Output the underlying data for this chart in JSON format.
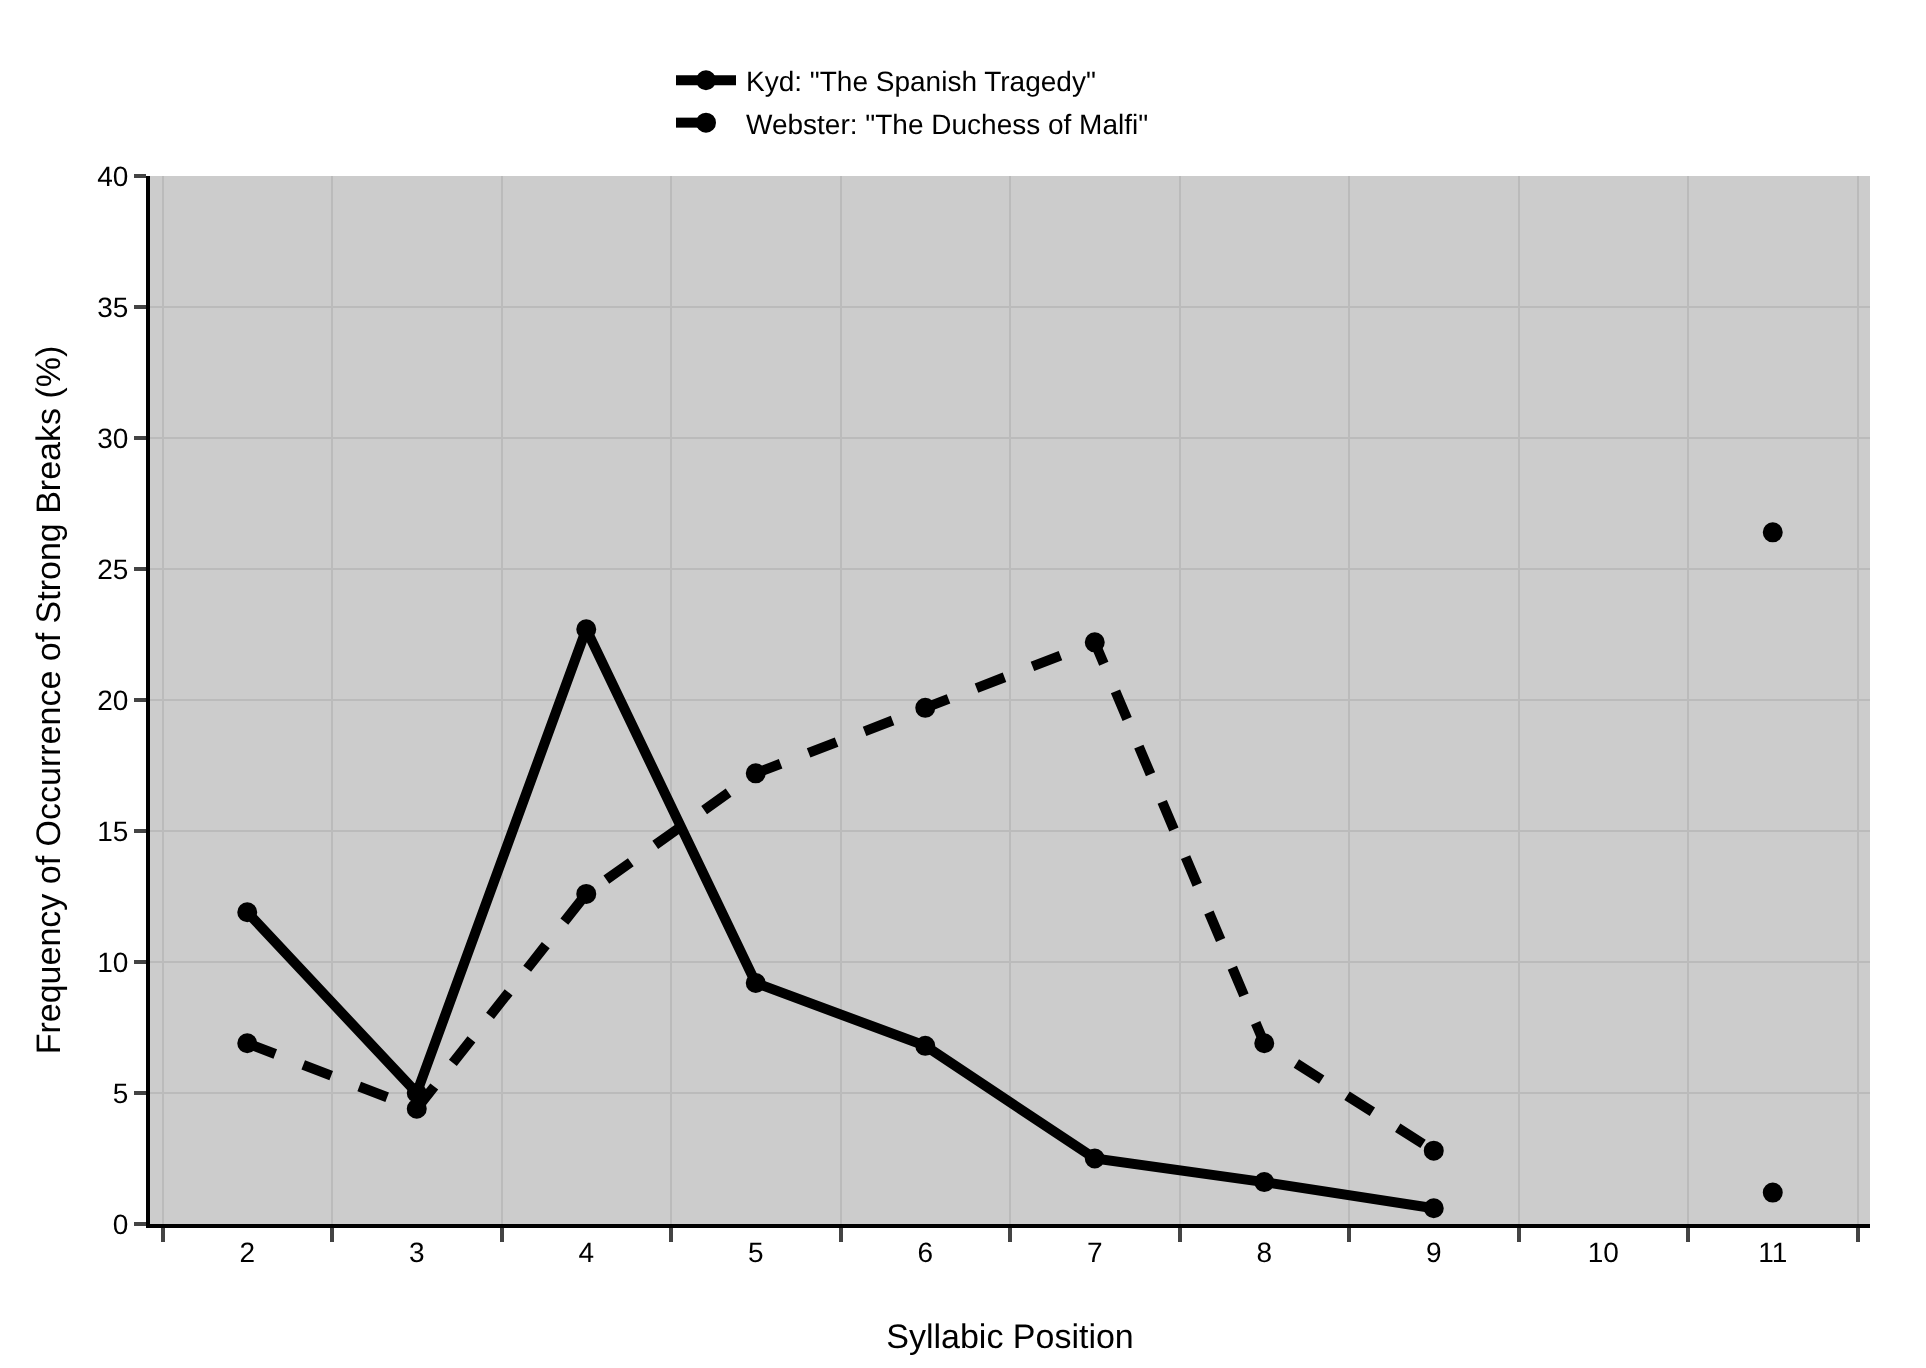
{
  "chart_data": {
    "type": "line",
    "xlabel": "Syllabic Position",
    "ylabel": "Frequency of Occurrence of Strong Breaks (%)",
    "categories": [
      "2",
      "3",
      "4",
      "5",
      "6",
      "7",
      "8",
      "9",
      "10",
      "11"
    ],
    "series": [
      {
        "name": "Kyd: \"The Spanish Tragedy\"",
        "color": "#000000",
        "line_style": "solid",
        "values": [
          11.9,
          5.0,
          22.7,
          9.2,
          6.8,
          2.5,
          1.6,
          0.6,
          null,
          1.2
        ]
      },
      {
        "name": "Webster: \"The Duchess of Malfi\"",
        "color": "#000000",
        "line_style": "dashed",
        "values": [
          6.9,
          4.4,
          12.6,
          17.2,
          19.7,
          22.2,
          6.9,
          2.8,
          null,
          26.4
        ]
      }
    ],
    "ylim": [
      0,
      40
    ],
    "yticks": [
      0,
      5,
      10,
      15,
      20,
      25,
      30,
      35,
      40
    ],
    "grid": true,
    "legend": "top",
    "marker": "circle"
  }
}
